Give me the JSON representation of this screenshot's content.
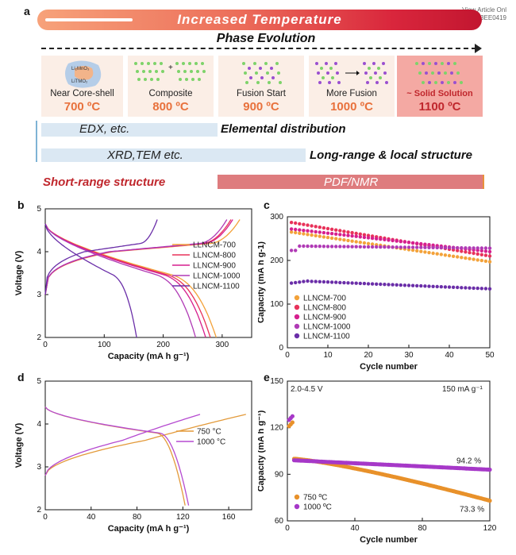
{
  "view_article": [
    "View Article Onl",
    "DOI: 10.1039/D3EE0419"
  ],
  "panel_a": {
    "label": "a",
    "banner": "Increased Temperature",
    "phase_title": "Phase Evolution",
    "stages": [
      {
        "name": "Near Core-shell",
        "temp": "700 ºC",
        "formula_1": "Li₂MnO₃",
        "formula_2": "LiTMO₂"
      },
      {
        "name": "Composite",
        "temp": "800 ºC"
      },
      {
        "name": "Fusion Start",
        "temp": "900 ºC"
      },
      {
        "name": "More Fusion",
        "temp": "1000 ºC"
      },
      {
        "name": "~ Solid Solution",
        "temp": "1100 ºC"
      }
    ],
    "rows": [
      {
        "technique": "EDX, etc.",
        "property": "Elemental distribution"
      },
      {
        "technique": "XRD,TEM etc.",
        "property": "Long-range & local structure"
      },
      {
        "technique": "PDF/NMR",
        "property": "Short-range structure"
      }
    ],
    "colors": {
      "stage_bg": "#fbeee6",
      "stage_last_bg": "#f4a9a3",
      "bar_blue": "#dbe8f3",
      "bar_red": "#de7c7e",
      "temp_orange": "#e8713c",
      "red_text": "#c0272d"
    }
  },
  "chart_data": [
    {
      "panel": "b",
      "type": "line",
      "title": "",
      "xlabel": "Capacity (mA h g⁻¹)",
      "ylabel": "Voltage (V)",
      "xlim": [
        0,
        350
      ],
      "ylim": [
        2,
        5
      ],
      "xticks": [
        0,
        100,
        200,
        300
      ],
      "yticks": [
        2,
        3,
        4,
        5
      ],
      "legend": "right",
      "series": [
        {
          "name": "LLNCM-700",
          "color": "#f3a23a",
          "charge_cap": 330,
          "discharge_cap": 290
        },
        {
          "name": "LLNCM-800",
          "color": "#e8325a",
          "charge_cap": 315,
          "discharge_cap": 280
        },
        {
          "name": "LLNCM-900",
          "color": "#d61f8e",
          "charge_cap": 318,
          "discharge_cap": 272
        },
        {
          "name": "LLNCM-1000",
          "color": "#b03ab5",
          "charge_cap": 308,
          "discharge_cap": 255
        },
        {
          "name": "LLNCM-1100",
          "color": "#6a2ea8",
          "charge_cap": 190,
          "discharge_cap": 155
        }
      ]
    },
    {
      "panel": "c",
      "type": "scatter",
      "title": "",
      "xlabel": "Cycle number",
      "ylabel": "Capacity (mA h g-1)",
      "xlim": [
        0,
        50
      ],
      "ylim": [
        0,
        300
      ],
      "xticks": [
        0,
        10,
        20,
        30,
        40,
        50
      ],
      "yticks": [
        0,
        100,
        200,
        300
      ],
      "legend": "bottom-left",
      "series": [
        {
          "name": "LLNCM-700",
          "color": "#f3a23a",
          "start": 265,
          "end": 197
        },
        {
          "name": "LLNCM-800",
          "color": "#e8325a",
          "start": 287,
          "end": 210
        },
        {
          "name": "LLNCM-900",
          "color": "#d61f8e",
          "start": 272,
          "end": 220
        },
        {
          "name": "LLNCM-1000",
          "color": "#b03ab5",
          "start": 233,
          "end": 228
        },
        {
          "name": "LLNCM-1100",
          "color": "#6a2ea8",
          "start": 154,
          "end": 135
        }
      ]
    },
    {
      "panel": "d",
      "type": "line",
      "title": "",
      "xlabel": "Capacity (mA h g⁻¹)",
      "ylabel": "Voltage (V)",
      "xlim": [
        0,
        180
      ],
      "ylim": [
        2,
        5
      ],
      "xticks": [
        0,
        40,
        80,
        120,
        160
      ],
      "yticks": [
        2,
        3,
        4,
        5
      ],
      "legend": "right",
      "series": [
        {
          "name": "750 °C",
          "color": "#e39a3a",
          "charge_cap": 175,
          "discharge_cap": 122
        },
        {
          "name": "1000 °C",
          "color": "#b54ad0",
          "charge_cap": 135,
          "discharge_cap": 125
        }
      ]
    },
    {
      "panel": "e",
      "type": "scatter",
      "title": "",
      "xlabel": "Cycle number",
      "ylabel": "Capacity (mA h g⁻¹)",
      "xlim": [
        0,
        120
      ],
      "ylim": [
        60,
        150
      ],
      "xticks": [
        0,
        40,
        80,
        120
      ],
      "yticks": [
        60,
        90,
        120,
        150
      ],
      "legend": "bottom-left",
      "annotations": [
        "2.0-4.5 V",
        "150 mA g⁻¹",
        "94.2 %",
        "73.3 %"
      ],
      "series": [
        {
          "name": "750 ºC",
          "color": "#e8912a",
          "first": 121,
          "start": 100,
          "end": 73
        },
        {
          "name": "1000 ºC",
          "color": "#a638c8",
          "first": 125,
          "start": 99,
          "end": 93
        }
      ]
    }
  ]
}
